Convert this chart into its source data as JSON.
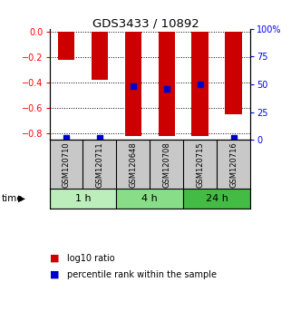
{
  "title": "GDS3433 / 10892",
  "samples": [
    "GSM120710",
    "GSM120711",
    "GSM120648",
    "GSM120708",
    "GSM120715",
    "GSM120716"
  ],
  "groups": [
    {
      "label": "1 h",
      "indices": [
        0,
        1
      ],
      "color": "#bbeebb"
    },
    {
      "label": "4 h",
      "indices": [
        2,
        3
      ],
      "color": "#88dd88"
    },
    {
      "label": "24 h",
      "indices": [
        4,
        5
      ],
      "color": "#44bb44"
    }
  ],
  "log10_ratio": [
    -0.22,
    -0.38,
    -0.82,
    -0.82,
    -0.82,
    -0.65
  ],
  "percentile_rank": [
    2,
    2,
    48,
    46,
    50,
    2
  ],
  "ylim_left": [
    -0.85,
    0.02
  ],
  "ylim_right": [
    0,
    100
  ],
  "yticks_left": [
    0,
    -0.2,
    -0.4,
    -0.6,
    -0.8
  ],
  "yticks_right": [
    0,
    25,
    50,
    75,
    100
  ],
  "bar_color": "#cc0000",
  "dot_color": "#0000cc",
  "bar_width": 0.5,
  "label_bg": "#c8c8c8"
}
